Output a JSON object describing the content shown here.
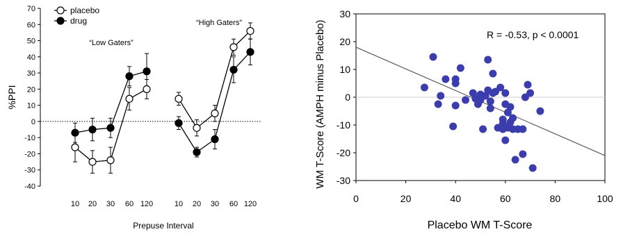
{
  "chart_data": [
    {
      "type": "line",
      "ylabel": "%PPI",
      "xlabel": "Prepuse Interval",
      "ylim": [
        -40,
        70
      ],
      "yticks": [
        -40,
        -30,
        -20,
        -10,
        0,
        10,
        20,
        30,
        40,
        50,
        60,
        70
      ],
      "reference_line": 0,
      "legend_position": "top-left",
      "legend": [
        {
          "name": "placebo",
          "marker": "open-circle"
        },
        {
          "name": "drug",
          "marker": "filled-circle"
        }
      ],
      "groups": [
        {
          "label": "“Low Gaters”",
          "categories": [
            "10",
            "20",
            "30",
            "60",
            "120"
          ],
          "series": [
            {
              "name": "placebo",
              "values": [
                -16,
                -25,
                -24,
                14,
                20
              ],
              "errors": [
                9,
                7,
                8,
                7,
                6
              ]
            },
            {
              "name": "drug",
              "values": [
                -7,
                -5,
                -4,
                28,
                31
              ],
              "errors": [
                6,
                7,
                6,
                6,
                11
              ]
            }
          ]
        },
        {
          "label": "“High Gaters”",
          "categories": [
            "10",
            "20",
            "30",
            "60",
            "120"
          ],
          "series": [
            {
              "name": "placebo",
              "values": [
                14,
                -4,
                5,
                46,
                56
              ],
              "errors": [
                4,
                5,
                5,
                5,
                5
              ]
            },
            {
              "name": "drug",
              "values": [
                -1,
                -19,
                -11,
                32,
                43
              ],
              "errors": [
                4,
                3,
                6,
                8,
                8
              ]
            }
          ]
        }
      ]
    },
    {
      "type": "scatter",
      "xlabel": "Placebo WM T-Score",
      "ylabel": "WM T-Score (AMPH minus Placebo)",
      "xlim": [
        0,
        100
      ],
      "ylim": [
        -30,
        30
      ],
      "xticks": [
        0,
        20,
        40,
        60,
        80,
        100
      ],
      "yticks": [
        -30,
        -20,
        -10,
        0,
        10,
        20,
        30
      ],
      "annotation": "R = -0.53, p < 0.0001",
      "reference_line": 0,
      "regression": {
        "x": [
          0,
          100
        ],
        "y": [
          18,
          -21
        ]
      },
      "color": "#3a3dab",
      "points": [
        [
          27.5,
          3.5
        ],
        [
          31,
          14.5
        ],
        [
          33,
          -2.5
        ],
        [
          34,
          0.5
        ],
        [
          36,
          6.5
        ],
        [
          39,
          -10.5
        ],
        [
          40,
          6.5
        ],
        [
          40,
          5
        ],
        [
          40,
          -3
        ],
        [
          42,
          10.5
        ],
        [
          44,
          -1
        ],
        [
          47,
          1.5
        ],
        [
          48,
          -0.5
        ],
        [
          49,
          -2.5
        ],
        [
          50,
          1
        ],
        [
          50,
          -1
        ],
        [
          51,
          -11.5
        ],
        [
          52,
          0.5
        ],
        [
          53,
          13.5
        ],
        [
          53,
          2.5
        ],
        [
          54,
          -1.5
        ],
        [
          54,
          -4
        ],
        [
          55,
          8.5
        ],
        [
          55,
          1.5
        ],
        [
          56,
          2
        ],
        [
          57,
          -11
        ],
        [
          58,
          3.5
        ],
        [
          59,
          -8
        ],
        [
          59,
          -11.5
        ],
        [
          59,
          -9.5
        ],
        [
          60,
          -2.5
        ],
        [
          60,
          1.5
        ],
        [
          60,
          -15.5
        ],
        [
          61,
          -5.5
        ],
        [
          61,
          -11
        ],
        [
          62,
          -3.5
        ],
        [
          62,
          -9
        ],
        [
          63,
          -11.5
        ],
        [
          63,
          -7.5
        ],
        [
          64,
          -22.5
        ],
        [
          65,
          -11.5
        ],
        [
          67,
          -11.5
        ],
        [
          67,
          -20.5
        ],
        [
          68,
          0
        ],
        [
          69,
          4.5
        ],
        [
          70,
          1.5
        ],
        [
          71,
          -25.5
        ],
        [
          74,
          -5
        ]
      ]
    }
  ]
}
